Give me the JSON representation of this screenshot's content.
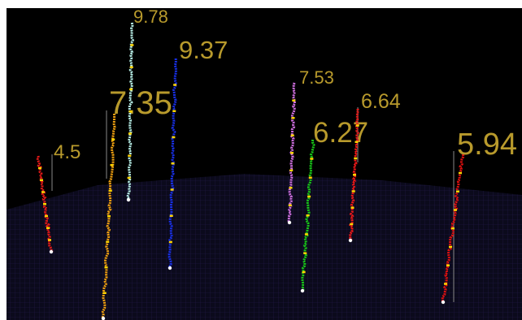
{
  "trees": [
    {
      "label": "4.5"
    },
    {
      "label": "7.35"
    },
    {
      "label": "9.78"
    },
    {
      "label": "9.37"
    },
    {
      "label": "7.53"
    },
    {
      "label": "6.27"
    },
    {
      "label": "6.64"
    },
    {
      "label": "5.94"
    }
  ]
}
